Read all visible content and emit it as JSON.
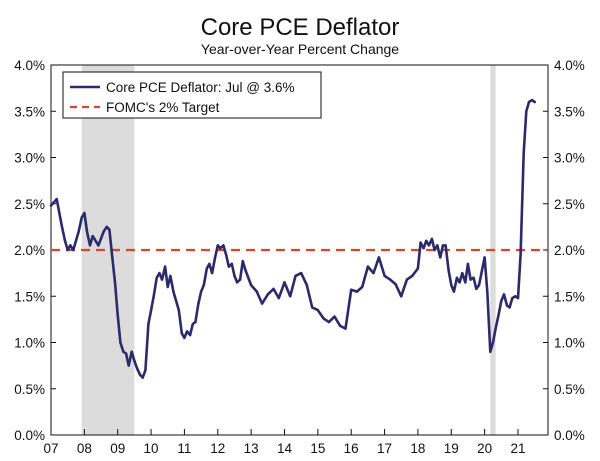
{
  "chart_data": {
    "type": "line",
    "title": "Core PCE Deflator",
    "subtitle": "Year-over-Year Percent Change",
    "xlabel": "",
    "ylabel": "",
    "ylim": [
      0,
      4
    ],
    "xlim": [
      2007.0,
      2021.9
    ],
    "y_ticks": [
      0,
      0.5,
      1,
      1.5,
      2,
      2.5,
      3,
      3.5,
      4
    ],
    "y_tick_labels": [
      "0.0%",
      "0.5%",
      "1.0%",
      "1.5%",
      "2.0%",
      "2.5%",
      "3.0%",
      "3.5%",
      "4.0%"
    ],
    "x_tick_values": [
      2007,
      2008,
      2009,
      2010,
      2011,
      2012,
      2013,
      2014,
      2015,
      2016,
      2017,
      2018,
      2019,
      2020,
      2021
    ],
    "x_tick_labels": [
      "07",
      "08",
      "09",
      "10",
      "11",
      "12",
      "13",
      "14",
      "15",
      "16",
      "17",
      "18",
      "19",
      "20",
      "21"
    ],
    "recessions": [
      [
        2007.92,
        2009.5
      ],
      [
        2020.17,
        2020.33
      ]
    ],
    "target": {
      "name": "FOMC's 2% Target",
      "value": 2.0,
      "color": "#e0432b"
    },
    "legend_position": "top-left",
    "series": [
      {
        "name": "Core PCE Deflator: Jul @ 3.6%",
        "color": "#2b2a6b",
        "x": [
          2007.0,
          2007.17,
          2007.33,
          2007.42,
          2007.5,
          2007.58,
          2007.67,
          2007.83,
          2007.92,
          2008.0,
          2008.08,
          2008.17,
          2008.25,
          2008.42,
          2008.58,
          2008.67,
          2008.75,
          2008.83,
          2008.92,
          2009.0,
          2009.08,
          2009.17,
          2009.25,
          2009.33,
          2009.42,
          2009.5,
          2009.58,
          2009.67,
          2009.75,
          2009.83,
          2009.92,
          2010.0,
          2010.08,
          2010.17,
          2010.25,
          2010.33,
          2010.42,
          2010.5,
          2010.58,
          2010.67,
          2010.75,
          2010.83,
          2010.92,
          2011.0,
          2011.08,
          2011.17,
          2011.25,
          2011.33,
          2011.42,
          2011.5,
          2011.58,
          2011.67,
          2011.75,
          2011.83,
          2011.92,
          2012.0,
          2012.08,
          2012.17,
          2012.25,
          2012.33,
          2012.42,
          2012.5,
          2012.58,
          2012.67,
          2012.75,
          2012.83,
          2013.0,
          2013.17,
          2013.33,
          2013.5,
          2013.67,
          2013.83,
          2014.0,
          2014.17,
          2014.33,
          2014.5,
          2014.67,
          2014.83,
          2015.0,
          2015.17,
          2015.33,
          2015.5,
          2015.67,
          2015.83,
          2016.0,
          2016.17,
          2016.33,
          2016.5,
          2016.67,
          2016.83,
          2017.0,
          2017.17,
          2017.33,
          2017.5,
          2017.67,
          2017.83,
          2018.0,
          2018.08,
          2018.17,
          2018.25,
          2018.33,
          2018.42,
          2018.5,
          2018.58,
          2018.67,
          2018.75,
          2018.83,
          2018.92,
          2019.0,
          2019.08,
          2019.17,
          2019.25,
          2019.33,
          2019.42,
          2019.5,
          2019.58,
          2019.67,
          2019.75,
          2019.83,
          2019.92,
          2020.0,
          2020.08,
          2020.17,
          2020.25,
          2020.33,
          2020.42,
          2020.5,
          2020.58,
          2020.67,
          2020.75,
          2020.83,
          2020.92,
          2021.0,
          2021.08,
          2021.17,
          2021.25,
          2021.33,
          2021.42,
          2021.5
        ],
        "values": [
          2.48,
          2.55,
          2.25,
          2.1,
          2.0,
          2.05,
          2.0,
          2.2,
          2.35,
          2.4,
          2.2,
          2.05,
          2.15,
          2.05,
          2.2,
          2.25,
          2.22,
          1.95,
          1.65,
          1.3,
          1.0,
          0.9,
          0.88,
          0.75,
          0.9,
          0.8,
          0.72,
          0.65,
          0.62,
          0.7,
          1.2,
          1.35,
          1.5,
          1.7,
          1.75,
          1.68,
          1.82,
          1.6,
          1.72,
          1.55,
          1.45,
          1.35,
          1.1,
          1.05,
          1.12,
          1.08,
          1.2,
          1.22,
          1.42,
          1.55,
          1.62,
          1.8,
          1.85,
          1.75,
          1.92,
          2.05,
          2.02,
          2.05,
          1.95,
          1.82,
          1.85,
          1.72,
          1.65,
          1.68,
          1.88,
          1.78,
          1.62,
          1.55,
          1.42,
          1.52,
          1.58,
          1.48,
          1.65,
          1.5,
          1.72,
          1.75,
          1.62,
          1.38,
          1.35,
          1.26,
          1.22,
          1.28,
          1.18,
          1.15,
          1.57,
          1.55,
          1.6,
          1.82,
          1.75,
          1.92,
          1.72,
          1.68,
          1.63,
          1.5,
          1.68,
          1.72,
          1.8,
          2.08,
          2.02,
          2.1,
          2.05,
          2.12,
          2.0,
          2.05,
          1.92,
          2.05,
          2.05,
          1.78,
          1.62,
          1.55,
          1.7,
          1.65,
          1.75,
          1.65,
          1.85,
          1.68,
          1.7,
          1.58,
          1.62,
          1.78,
          1.92,
          1.55,
          0.9,
          1.0,
          1.15,
          1.3,
          1.45,
          1.52,
          1.4,
          1.38,
          1.48,
          1.5,
          1.48,
          1.95,
          3.05,
          3.5,
          3.6,
          3.62,
          3.6
        ]
      }
    ]
  }
}
